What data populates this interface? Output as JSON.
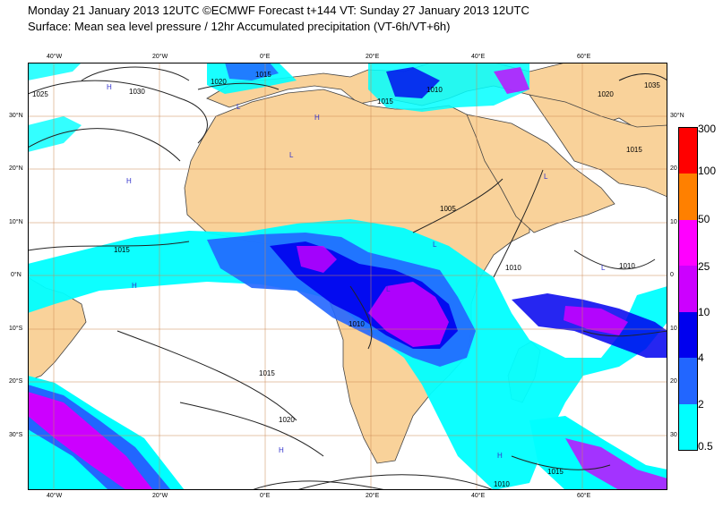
{
  "title_line1": "Monday 21 January 2013 12UTC ©ECMWF Forecast t+144 VT: Sunday 27 January 2013 12UTC",
  "title_line2": "Surface: Mean sea level pressure / 12hr Accumulated precipitation (VT-6h/VT+6h)",
  "lon_labels": [
    "40°W",
    "20°W",
    "0°E",
    "20°E",
    "40°E",
    "60°E"
  ],
  "lat_labels_left": [
    "30°N",
    "20°N",
    "10°N",
    "0°N",
    "10°S",
    "20°S",
    "30°S"
  ],
  "lat_labels_right": [
    "30°N",
    "20",
    "10",
    "0",
    "10",
    "20",
    "30"
  ],
  "isobar_labels": [
    "1025",
    "1030",
    "1020",
    "1015",
    "1015",
    "1010",
    "1010",
    "1015",
    "1020",
    "1015",
    "1010",
    "1010",
    "1005",
    "1035",
    "1020",
    "1015",
    "1015",
    "1010"
  ],
  "pressure_centers": [
    "H",
    "H",
    "H",
    "H",
    "H",
    "H",
    "L",
    "L",
    "L",
    "L",
    "L",
    "L"
  ],
  "colorbar": {
    "levels": [
      "300",
      "100",
      "50",
      "25",
      "10",
      "4",
      "2",
      "0.5"
    ],
    "colors": [
      "#ff0000",
      "#ff8000",
      "#ff00ff",
      "#cc00ff",
      "#0000ee",
      "#2266ff",
      "#00c4ff",
      "#00ffff"
    ]
  },
  "colors": {
    "land": "#f9d29a",
    "ocean": "#ffffff",
    "gridline": "#cc8855",
    "coast": "#444444",
    "isobar": "#222222"
  }
}
